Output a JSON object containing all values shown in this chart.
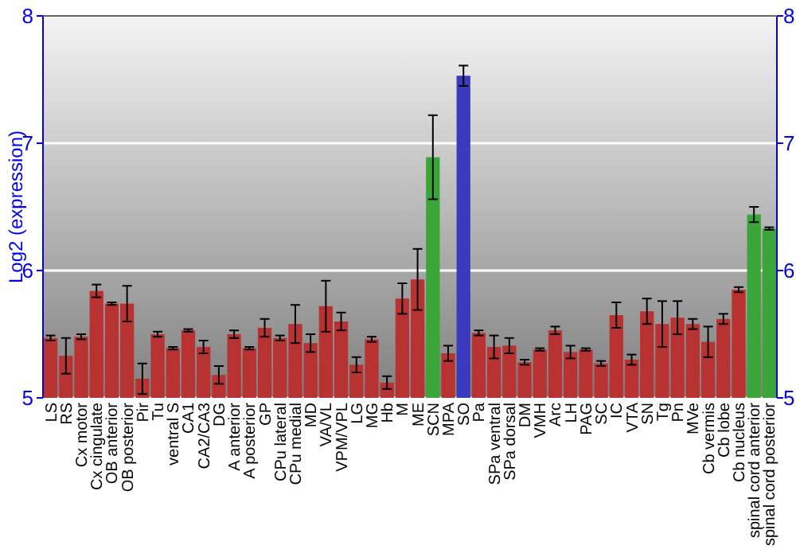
{
  "chart_data": {
    "type": "bar",
    "ylabel": "Log2 (expression)",
    "categories": [
      "LS",
      "RS",
      "Cx motor",
      "Cx cingulate",
      "OB anterior",
      "OB posterior",
      "Pir",
      "Tu",
      "ventral S",
      "CA1",
      "CA2/CA3",
      "DG",
      "A anterior",
      "A posterior",
      "GP",
      "CPu lateral",
      "CPu medial",
      "MD",
      "VA/VL",
      "VPM/VPL",
      "LG",
      "MG",
      "Hb",
      "M",
      "ME",
      "SCN",
      "MPA",
      "SO",
      "Pa",
      "SPa ventral",
      "SPa dorsal",
      "DM",
      "VMH",
      "Arc",
      "LH",
      "PAG",
      "SC",
      "IC",
      "VTA",
      "SN",
      "Tg",
      "Pn",
      "MVe",
      "Cb vermis",
      "Cb lobe",
      "Cb nucleus",
      "spinal cord anterior",
      "spinal cord posterior"
    ],
    "values": [
      5.47,
      5.33,
      5.48,
      5.84,
      5.74,
      5.74,
      5.15,
      5.5,
      5.39,
      5.53,
      5.4,
      5.18,
      5.5,
      5.39,
      5.55,
      5.47,
      5.58,
      5.43,
      5.72,
      5.6,
      5.26,
      5.46,
      5.12,
      5.78,
      5.93,
      6.89,
      5.35,
      7.53,
      5.51,
      5.4,
      5.41,
      5.28,
      5.38,
      5.53,
      5.36,
      5.38,
      5.27,
      5.65,
      5.3,
      5.68,
      5.58,
      5.63,
      5.58,
      5.44,
      5.62,
      5.85,
      6.44,
      6.33
    ],
    "errors": [
      0.02,
      0.14,
      0.02,
      0.05,
      0.01,
      0.14,
      0.12,
      0.02,
      0.01,
      0.01,
      0.05,
      0.07,
      0.03,
      0.01,
      0.07,
      0.02,
      0.15,
      0.07,
      0.2,
      0.07,
      0.06,
      0.02,
      0.05,
      0.12,
      0.24,
      0.33,
      0.06,
      0.08,
      0.02,
      0.09,
      0.06,
      0.02,
      0.01,
      0.03,
      0.05,
      0.01,
      0.02,
      0.1,
      0.04,
      0.1,
      0.18,
      0.13,
      0.04,
      0.12,
      0.04,
      0.02,
      0.06,
      0.01
    ],
    "colors": [
      "#b83232",
      "#b83232",
      "#b83232",
      "#b83232",
      "#b83232",
      "#b83232",
      "#b83232",
      "#b83232",
      "#b83232",
      "#b83232",
      "#b83232",
      "#b83232",
      "#b83232",
      "#b83232",
      "#b83232",
      "#b83232",
      "#b83232",
      "#b83232",
      "#b83232",
      "#b83232",
      "#b83232",
      "#b83232",
      "#b83232",
      "#b83232",
      "#b83232",
      "#3aa63a",
      "#b83232",
      "#3a3ac0",
      "#b83232",
      "#b83232",
      "#b83232",
      "#b83232",
      "#b83232",
      "#b83232",
      "#b83232",
      "#b83232",
      "#b83232",
      "#b83232",
      "#b83232",
      "#b83232",
      "#b83232",
      "#b83232",
      "#b83232",
      "#b83232",
      "#b83232",
      "#b83232",
      "#3aa63a",
      "#3aa63a"
    ],
    "ylim": [
      5,
      8
    ],
    "yticks": [
      5,
      6,
      7,
      8
    ],
    "y2lim": [
      5,
      8
    ],
    "y2ticks": [
      5,
      6,
      7,
      8
    ],
    "grid": "y"
  }
}
